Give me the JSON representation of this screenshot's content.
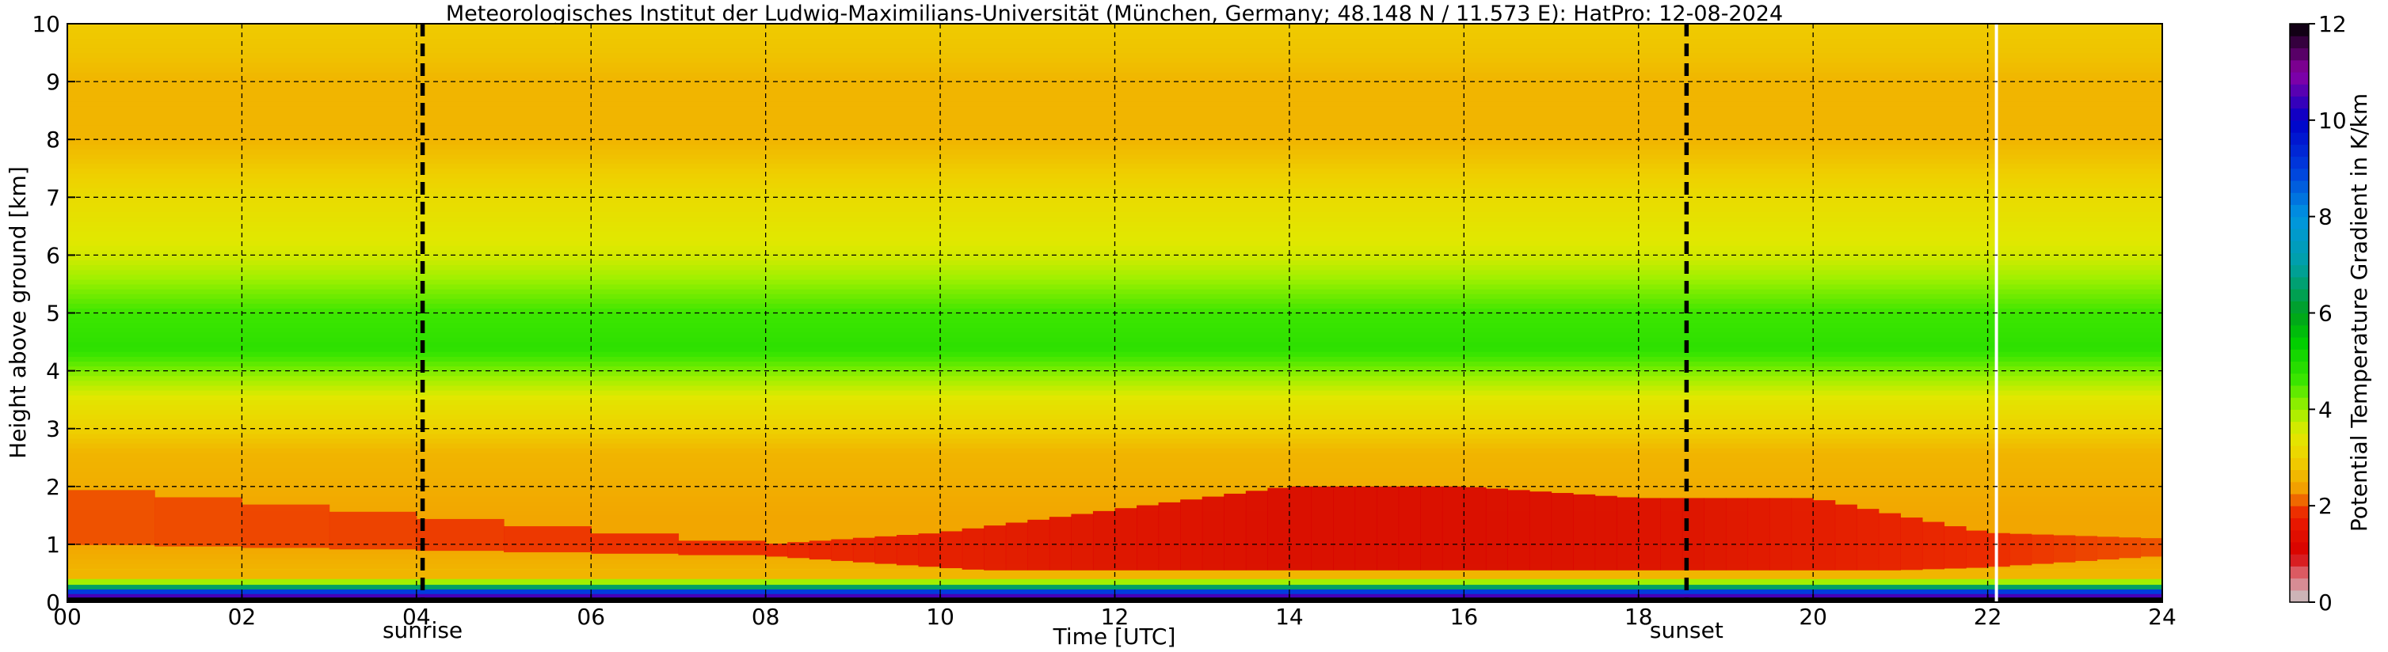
{
  "chart_data": [
    {
      "type": "heatmap",
      "title": "Meteorologisches Institut der Ludwig-Maximilians-Universität (München, Germany; 48.148 N / 11.573 E):    HatPro: 12-08-2024",
      "xlabel": "Time [UTC]",
      "ylabel": "Height above ground [km]",
      "colorbar_label": "Potential Temperature Gradient in K/km",
      "xlim": [
        0,
        24
      ],
      "ylim": [
        0,
        10
      ],
      "clim": [
        0,
        12
      ],
      "x_ticks": [
        0,
        2,
        4,
        6,
        8,
        10,
        12,
        14,
        16,
        18,
        20,
        22,
        24
      ],
      "x_tick_labels": [
        "00",
        "02",
        "04",
        "06",
        "08",
        "10",
        "12",
        "14",
        "16",
        "18",
        "20",
        "22",
        "24"
      ],
      "y_ticks": [
        0,
        1,
        2,
        3,
        4,
        5,
        6,
        7,
        8,
        9,
        10
      ],
      "y_tick_labels": [
        "0",
        "1",
        "2",
        "3",
        "4",
        "5",
        "6",
        "7",
        "8",
        "9",
        "10"
      ],
      "colorbar_ticks": [
        0,
        2,
        4,
        6,
        8,
        10,
        12
      ],
      "colorbar_tick_labels": [
        "0",
        "2",
        "4",
        "6",
        "8",
        "10",
        "12"
      ],
      "grid": true,
      "events": [
        {
          "label": "sunrise",
          "time": 4.07
        },
        {
          "label": "sunset",
          "time": 18.55
        }
      ],
      "data_gap_time": 22.1,
      "height_profile": {
        "heights_km": [
          0,
          0.12,
          0.2,
          0.28,
          0.4,
          0.55,
          1.0,
          1.5,
          2.0,
          2.6,
          3.0,
          3.5,
          4.0,
          4.4,
          5.0,
          5.4,
          6.0,
          7.0,
          7.5,
          8.0,
          9.0,
          9.5,
          10.0
        ],
        "values": [
          12,
          10,
          7,
          5,
          3.5,
          2.6,
          2.4,
          2.4,
          2.5,
          2.6,
          3.0,
          3.4,
          4.2,
          4.8,
          4.6,
          4.2,
          3.6,
          3.2,
          2.9,
          2.6,
          2.6,
          2.8,
          2.9
        ]
      },
      "red_layer": [
        {
          "time": 0,
          "bottom_km": 1.0,
          "top_km": 2.0,
          "value": 2.0
        },
        {
          "time": 8,
          "bottom_km": 0.8,
          "top_km": 1.0,
          "value": 1.8
        },
        {
          "time": 10,
          "bottom_km": 0.6,
          "top_km": 1.2,
          "value": 1.5
        },
        {
          "time": 12,
          "bottom_km": 0.4,
          "top_km": 1.6,
          "value": 1.2
        },
        {
          "time": 14,
          "bottom_km": 0.4,
          "top_km": 2.0,
          "value": 1.0
        },
        {
          "time": 16,
          "bottom_km": 0.4,
          "top_km": 2.0,
          "value": 1.0
        },
        {
          "time": 18,
          "bottom_km": 0.4,
          "top_km": 1.8,
          "value": 1.1
        },
        {
          "time": 20,
          "bottom_km": 0.5,
          "top_km": 1.8,
          "value": 1.4
        },
        {
          "time": 22,
          "bottom_km": 0.6,
          "top_km": 1.2,
          "value": 1.8
        },
        {
          "time": 24,
          "bottom_km": 0.8,
          "top_km": 1.1,
          "value": 2.0
        }
      ]
    }
  ]
}
